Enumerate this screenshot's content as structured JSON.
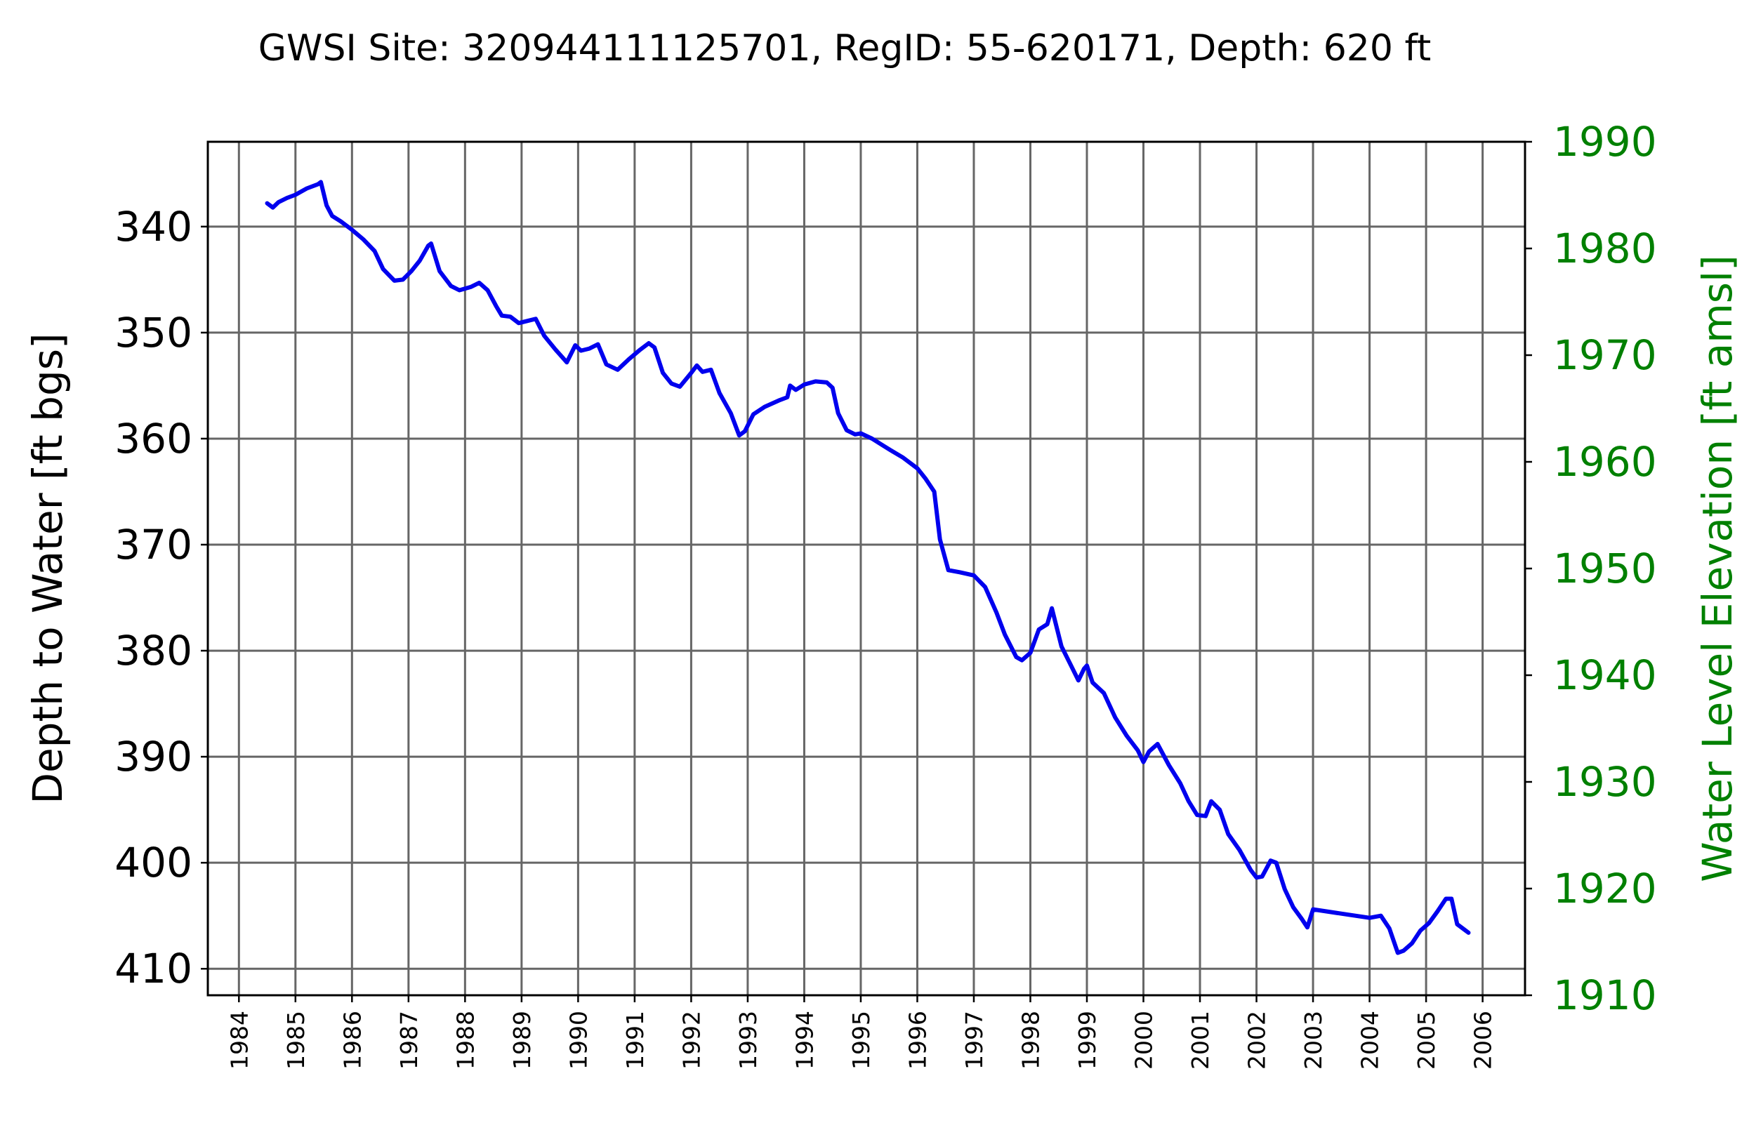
{
  "title": "GWSI Site: 320944111125701, RegID: 55-620171, Depth: 620 ft",
  "colors": {
    "series": "#0000ee",
    "right_axis": "#008000",
    "grid": "#666666"
  },
  "chart_data": {
    "type": "line",
    "title": "GWSI Site: 320944111125701, RegID: 55-620171, Depth: 620 ft",
    "grid": true,
    "y_left": {
      "label": "Depth to Water [ft bgs]",
      "inverted": true,
      "lim": [
        332,
        412.5
      ],
      "ticks": [
        340,
        350,
        360,
        370,
        380,
        390,
        400,
        410
      ]
    },
    "y_right": {
      "label": "Water Level Elevation [ft amsl]",
      "color": "#008000",
      "lim": [
        1910,
        1990
      ],
      "ticks": [
        1910,
        1920,
        1930,
        1940,
        1950,
        1960,
        1970,
        1980,
        1990
      ]
    },
    "x": {
      "lim": [
        1983.45,
        2006.75
      ],
      "ticks": [
        1984,
        1985,
        1986,
        1987,
        1988,
        1989,
        1990,
        1991,
        1992,
        1993,
        1994,
        1995,
        1996,
        1997,
        1998,
        1999,
        2000,
        2001,
        2002,
        2003,
        2004,
        2005,
        2006
      ],
      "tick_labels": [
        "1984",
        "1985",
        "1986",
        "1987",
        "1988",
        "1989",
        "1990",
        "1991",
        "1992",
        "1993",
        "1994",
        "1995",
        "1996",
        "1997",
        "1998",
        "1999",
        "2000",
        "2001",
        "2002",
        "2003",
        "2004",
        "2005",
        "2006"
      ]
    },
    "series": [
      {
        "values": [
          [
            1984.5,
            337.8
          ],
          [
            1984.6,
            338.2
          ],
          [
            1984.7,
            337.7
          ],
          [
            1984.85,
            337.3
          ],
          [
            1985.0,
            337.0
          ],
          [
            1985.2,
            336.4
          ],
          [
            1985.4,
            336.0
          ],
          [
            1985.45,
            335.8
          ],
          [
            1985.55,
            338.0
          ],
          [
            1985.65,
            339.0
          ],
          [
            1985.8,
            339.5
          ],
          [
            1986.0,
            340.3
          ],
          [
            1986.2,
            341.2
          ],
          [
            1986.4,
            342.3
          ],
          [
            1986.55,
            344.0
          ],
          [
            1986.75,
            345.1
          ],
          [
            1986.9,
            345.0
          ],
          [
            1987.05,
            344.2
          ],
          [
            1987.2,
            343.2
          ],
          [
            1987.35,
            341.8
          ],
          [
            1987.4,
            341.6
          ],
          [
            1987.55,
            344.2
          ],
          [
            1987.75,
            345.6
          ],
          [
            1987.9,
            346.0
          ],
          [
            1988.1,
            345.7
          ],
          [
            1988.25,
            345.3
          ],
          [
            1988.4,
            346.0
          ],
          [
            1988.55,
            347.5
          ],
          [
            1988.65,
            348.4
          ],
          [
            1988.8,
            348.5
          ],
          [
            1988.95,
            349.1
          ],
          [
            1989.1,
            348.9
          ],
          [
            1989.25,
            348.7
          ],
          [
            1989.4,
            350.3
          ],
          [
            1989.6,
            351.6
          ],
          [
            1989.8,
            352.8
          ],
          [
            1989.95,
            351.2
          ],
          [
            1990.05,
            351.7
          ],
          [
            1990.2,
            351.5
          ],
          [
            1990.35,
            351.1
          ],
          [
            1990.5,
            353.0
          ],
          [
            1990.7,
            353.5
          ],
          [
            1990.9,
            352.5
          ],
          [
            1991.1,
            351.6
          ],
          [
            1991.25,
            351.0
          ],
          [
            1991.35,
            351.4
          ],
          [
            1991.5,
            353.8
          ],
          [
            1991.65,
            354.8
          ],
          [
            1991.8,
            355.1
          ],
          [
            1992.0,
            353.8
          ],
          [
            1992.1,
            353.1
          ],
          [
            1992.2,
            353.7
          ],
          [
            1992.35,
            353.5
          ],
          [
            1992.5,
            355.7
          ],
          [
            1992.7,
            357.6
          ],
          [
            1992.85,
            359.7
          ],
          [
            1992.95,
            359.3
          ],
          [
            1993.1,
            357.7
          ],
          [
            1993.3,
            357.0
          ],
          [
            1993.55,
            356.4
          ],
          [
            1993.7,
            356.1
          ],
          [
            1993.75,
            355.0
          ],
          [
            1993.85,
            355.4
          ],
          [
            1994.0,
            354.9
          ],
          [
            1994.2,
            354.6
          ],
          [
            1994.4,
            354.7
          ],
          [
            1994.5,
            355.2
          ],
          [
            1994.6,
            357.6
          ],
          [
            1994.75,
            359.2
          ],
          [
            1994.9,
            359.6
          ],
          [
            1995.0,
            359.5
          ],
          [
            1995.2,
            360.0
          ],
          [
            1995.5,
            361.0
          ],
          [
            1995.75,
            361.8
          ],
          [
            1996.0,
            362.8
          ],
          [
            1996.15,
            363.8
          ],
          [
            1996.3,
            365.0
          ],
          [
            1996.4,
            369.5
          ],
          [
            1996.55,
            372.4
          ],
          [
            1996.75,
            372.6
          ],
          [
            1997.0,
            372.9
          ],
          [
            1997.2,
            374.0
          ],
          [
            1997.4,
            376.4
          ],
          [
            1997.55,
            378.5
          ],
          [
            1997.75,
            380.6
          ],
          [
            1997.85,
            380.9
          ],
          [
            1998.0,
            380.2
          ],
          [
            1998.15,
            378.0
          ],
          [
            1998.3,
            377.5
          ],
          [
            1998.38,
            376.0
          ],
          [
            1998.55,
            379.6
          ],
          [
            1998.7,
            381.2
          ],
          [
            1998.85,
            382.8
          ],
          [
            1998.95,
            381.7
          ],
          [
            1999.0,
            381.4
          ],
          [
            1999.1,
            383.0
          ],
          [
            1999.3,
            384.0
          ],
          [
            1999.5,
            386.3
          ],
          [
            1999.7,
            388.0
          ],
          [
            1999.9,
            389.4
          ],
          [
            2000.0,
            390.5
          ],
          [
            2000.1,
            389.5
          ],
          [
            2000.25,
            388.8
          ],
          [
            2000.45,
            390.8
          ],
          [
            2000.65,
            392.5
          ],
          [
            2000.8,
            394.2
          ],
          [
            2000.95,
            395.5
          ],
          [
            2001.1,
            395.6
          ],
          [
            2001.2,
            394.2
          ],
          [
            2001.35,
            395.0
          ],
          [
            2001.5,
            397.3
          ],
          [
            2001.7,
            398.8
          ],
          [
            2001.9,
            400.7
          ],
          [
            2002.0,
            401.4
          ],
          [
            2002.1,
            401.3
          ],
          [
            2002.25,
            399.8
          ],
          [
            2002.35,
            400.0
          ],
          [
            2002.5,
            402.5
          ],
          [
            2002.65,
            404.2
          ],
          [
            2002.8,
            405.3
          ],
          [
            2002.9,
            406.1
          ],
          [
            2003.0,
            404.4
          ],
          [
            2003.5,
            404.8
          ],
          [
            2004.0,
            405.2
          ],
          [
            2004.2,
            405.0
          ],
          [
            2004.35,
            406.2
          ],
          [
            2004.5,
            408.5
          ],
          [
            2004.6,
            408.3
          ],
          [
            2004.75,
            407.6
          ],
          [
            2004.9,
            406.4
          ],
          [
            2005.05,
            405.7
          ],
          [
            2005.2,
            404.6
          ],
          [
            2005.35,
            403.4
          ],
          [
            2005.45,
            403.4
          ],
          [
            2005.55,
            405.8
          ],
          [
            2005.65,
            406.2
          ],
          [
            2005.75,
            406.6
          ]
        ]
      }
    ]
  }
}
